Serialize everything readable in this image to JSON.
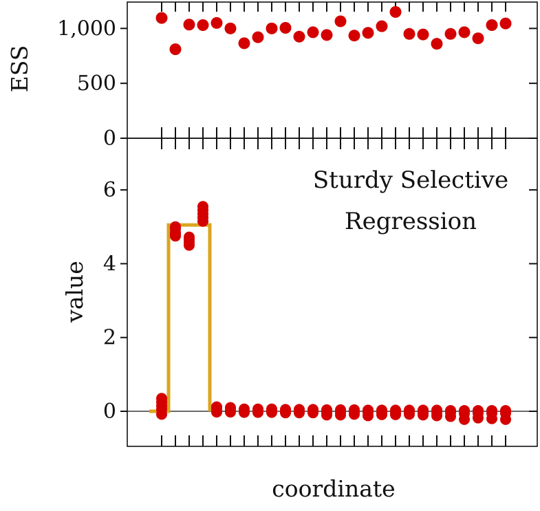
{
  "chart_data": [
    {
      "type": "scatter",
      "ylabel": "ESS",
      "xlabel": "",
      "ylim": [
        0,
        1240
      ],
      "y_ticks": [
        {
          "value": 0,
          "label": "0"
        },
        {
          "value": 500,
          "label": "500"
        },
        {
          "value": 1000,
          "label": "1,000"
        }
      ],
      "x": [
        1,
        2,
        3,
        4,
        5,
        6,
        7,
        8,
        9,
        10,
        11,
        12,
        13,
        14,
        15,
        16,
        17,
        18,
        19,
        20,
        21,
        22,
        23,
        24,
        25,
        26
      ],
      "values": [
        1095,
        810,
        1035,
        1030,
        1050,
        1000,
        865,
        920,
        1000,
        1005,
        925,
        965,
        940,
        1065,
        935,
        960,
        1020,
        1150,
        950,
        945,
        860,
        950,
        965,
        910,
        1030,
        1045
      ],
      "grid": false,
      "colors": {
        "points": "#d40000"
      }
    },
    {
      "type": "scatter",
      "ylabel": "value",
      "xlabel": "coordinate",
      "ylim": [
        -0.95,
        7.4
      ],
      "y_ticks": [
        {
          "value": 0,
          "label": "0"
        },
        {
          "value": 2,
          "label": "2"
        },
        {
          "value": 4,
          "label": "4"
        },
        {
          "value": 6,
          "label": "6"
        }
      ],
      "annotation": [
        "Sturdy Selective",
        "Regression"
      ],
      "x": [
        1,
        2,
        3,
        4,
        5,
        6,
        7,
        8,
        9,
        10,
        11,
        12,
        13,
        14,
        15,
        16,
        17,
        18,
        19,
        20,
        21,
        22,
        23,
        24,
        25,
        26
      ],
      "estimates": [
        [
          0.35,
          0.25,
          0.15,
          0.05,
          -0.08
        ],
        [
          5.0,
          4.95,
          4.85,
          4.8,
          4.75
        ],
        [
          4.72,
          4.65,
          4.58,
          4.5
        ],
        [
          5.55,
          5.45,
          5.35,
          5.25,
          5.15
        ],
        [
          0.12,
          0.05,
          -0.02
        ],
        [
          0.1,
          0.04,
          -0.02
        ],
        [
          0.06,
          0.01,
          -0.03
        ],
        [
          0.06,
          0.01,
          -0.03
        ],
        [
          0.06,
          0.01,
          -0.03
        ],
        [
          0.05,
          0.0,
          -0.04
        ],
        [
          0.05,
          0.0,
          -0.04
        ],
        [
          0.05,
          0.0,
          -0.04
        ],
        [
          0.04,
          -0.03,
          -0.1
        ],
        [
          0.04,
          -0.03,
          -0.1
        ],
        [
          0.04,
          -0.02,
          -0.08
        ],
        [
          0.03,
          -0.03,
          -0.12
        ],
        [
          0.03,
          -0.03,
          -0.09
        ],
        [
          0.03,
          -0.03,
          -0.09
        ],
        [
          0.03,
          -0.03,
          -0.08
        ],
        [
          0.03,
          -0.03,
          -0.1
        ],
        [
          0.03,
          -0.03,
          -0.12
        ],
        [
          0.02,
          -0.04,
          -0.14
        ],
        [
          0.02,
          -0.06,
          -0.22
        ],
        [
          0.02,
          -0.05,
          -0.18
        ],
        [
          0.02,
          -0.05,
          -0.2
        ],
        [
          0.02,
          -0.05,
          -0.22
        ]
      ],
      "truth": {
        "x": [
          0.1,
          1.5,
          1.5,
          4.5,
          4.5,
          26.0
        ],
        "y": [
          0,
          0,
          5.05,
          5.05,
          0,
          0
        ]
      },
      "grid": false,
      "colors": {
        "points": "#d40000",
        "truth": "#daa520"
      }
    }
  ]
}
